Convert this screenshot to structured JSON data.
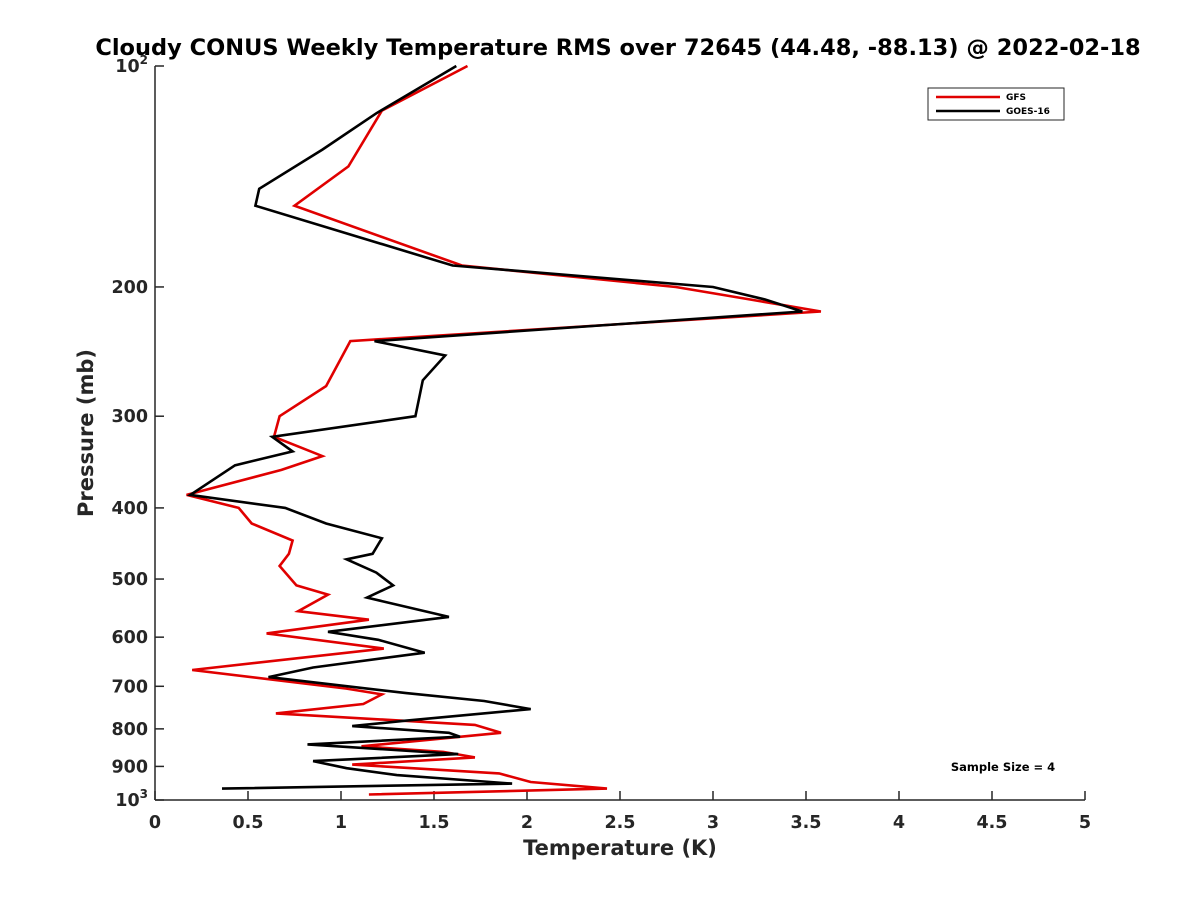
{
  "chart_data": {
    "type": "line",
    "title": "Cloudy CONUS Weekly Temperature RMS over 72645 (44.48, -88.13) @ 2022-02-18",
    "xlabel": "Temperature (K)",
    "ylabel": "Pressure (mb)",
    "xlim": [
      0,
      5
    ],
    "ylim": [
      100,
      1000
    ],
    "y_scale": "log",
    "y_reversed": true,
    "grid": false,
    "legend_position": "top-right",
    "x_ticks": [
      "0",
      "0.5",
      "1",
      "1.5",
      "2",
      "2.5",
      "3",
      "3.5",
      "4",
      "4.5",
      "5"
    ],
    "y_ticks": [
      {
        "value": 100,
        "base": "10",
        "exp": "2"
      },
      {
        "value": 200,
        "label": "200"
      },
      {
        "value": 300,
        "label": "300"
      },
      {
        "value": 400,
        "label": "400"
      },
      {
        "value": 500,
        "label": "500"
      },
      {
        "value": 600,
        "label": "600"
      },
      {
        "value": 700,
        "label": "700"
      },
      {
        "value": 800,
        "label": "800"
      },
      {
        "value": 900,
        "label": "900"
      },
      {
        "value": 1000,
        "base": "10",
        "exp": "3"
      }
    ],
    "annotation": "Sample Size = 4",
    "series": [
      {
        "name": "GFS",
        "color": "#e00000",
        "points": [
          [
            1.68,
            100
          ],
          [
            1.22,
            115
          ],
          [
            1.04,
            137
          ],
          [
            0.75,
            155
          ],
          [
            1.65,
            187
          ],
          [
            2.8,
            200
          ],
          [
            3.2,
            208
          ],
          [
            3.58,
            216
          ],
          [
            1.05,
            237
          ],
          [
            0.92,
            273
          ],
          [
            0.67,
            300
          ],
          [
            0.64,
            320
          ],
          [
            0.9,
            340
          ],
          [
            0.68,
            355
          ],
          [
            0.17,
            384
          ],
          [
            0.45,
            400
          ],
          [
            0.52,
            420
          ],
          [
            0.74,
            443
          ],
          [
            0.72,
            462
          ],
          [
            0.67,
            480
          ],
          [
            0.76,
            510
          ],
          [
            0.93,
            525
          ],
          [
            0.77,
            553
          ],
          [
            1.15,
            568
          ],
          [
            0.6,
            593
          ],
          [
            1.23,
            622
          ],
          [
            0.2,
            665
          ],
          [
            1.03,
            705
          ],
          [
            1.22,
            718
          ],
          [
            1.12,
            740
          ],
          [
            0.65,
            762
          ],
          [
            1.72,
            790
          ],
          [
            1.86,
            810
          ],
          [
            1.11,
            845
          ],
          [
            1.55,
            860
          ],
          [
            1.72,
            875
          ],
          [
            1.06,
            895
          ],
          [
            1.85,
            920
          ],
          [
            2.02,
            945
          ],
          [
            2.43,
            965
          ],
          [
            1.15,
            983
          ]
        ]
      },
      {
        "name": "GOES-16",
        "color": "#000000",
        "points": [
          [
            1.62,
            100
          ],
          [
            1.19,
            116
          ],
          [
            0.9,
            130
          ],
          [
            0.56,
            147
          ],
          [
            0.54,
            155
          ],
          [
            1.6,
            187
          ],
          [
            3.0,
            200
          ],
          [
            3.28,
            208
          ],
          [
            3.48,
            216
          ],
          [
            1.18,
            237
          ],
          [
            1.56,
            248
          ],
          [
            1.44,
            268
          ],
          [
            1.4,
            300
          ],
          [
            0.63,
            320
          ],
          [
            0.74,
            335
          ],
          [
            0.43,
            350
          ],
          [
            0.19,
            384
          ],
          [
            0.7,
            400
          ],
          [
            0.92,
            420
          ],
          [
            1.22,
            440
          ],
          [
            1.17,
            462
          ],
          [
            1.03,
            470
          ],
          [
            1.19,
            490
          ],
          [
            1.28,
            510
          ],
          [
            1.14,
            530
          ],
          [
            1.58,
            563
          ],
          [
            0.93,
            590
          ],
          [
            1.2,
            605
          ],
          [
            1.45,
            630
          ],
          [
            0.85,
            660
          ],
          [
            0.61,
            680
          ],
          [
            1.35,
            715
          ],
          [
            1.77,
            733
          ],
          [
            2.02,
            752
          ],
          [
            1.34,
            780
          ],
          [
            1.06,
            793
          ],
          [
            1.58,
            810
          ],
          [
            1.64,
            820
          ],
          [
            0.82,
            840
          ],
          [
            1.63,
            866
          ],
          [
            0.85,
            885
          ],
          [
            1.03,
            905
          ],
          [
            1.3,
            925
          ],
          [
            1.92,
            950
          ],
          [
            0.36,
            965
          ]
        ]
      }
    ]
  }
}
